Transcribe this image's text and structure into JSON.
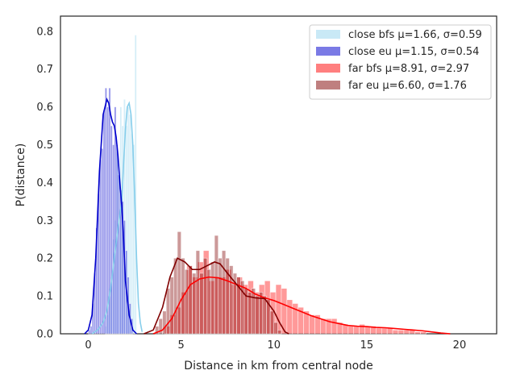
{
  "chart_data": {
    "type": "histogram",
    "xlabel": "Distance in km from central node",
    "ylabel": "P(distance)",
    "xlim": [
      -1.5,
      22
    ],
    "ylim": [
      0,
      0.84
    ],
    "xticks": [
      0,
      5,
      10,
      15,
      20
    ],
    "yticks": [
      0.0,
      0.1,
      0.2,
      0.3,
      0.4,
      0.5,
      0.6,
      0.7,
      0.8
    ],
    "grid": false,
    "legend_position": "top-right",
    "series": [
      {
        "name": "close bfs μ=1.66, σ=0.59",
        "color": "#87ceeb",
        "bar_alpha": 0.35,
        "bin_width": 0.1,
        "bins": [
          [
            0.9,
            0.02
          ],
          [
            1.0,
            0.05
          ],
          [
            1.1,
            0.12
          ],
          [
            1.2,
            0.15
          ],
          [
            1.3,
            0.25
          ],
          [
            1.4,
            0.3
          ],
          [
            1.5,
            0.5
          ],
          [
            1.6,
            0.45
          ],
          [
            1.7,
            0.6
          ],
          [
            1.8,
            0.55
          ],
          [
            1.9,
            0.62
          ],
          [
            2.0,
            0.55
          ],
          [
            2.1,
            0.6
          ],
          [
            2.2,
            0.58
          ],
          [
            2.3,
            0.53
          ],
          [
            2.4,
            0.5
          ],
          [
            2.5,
            0.79
          ]
        ],
        "kde": [
          [
            0.2,
            0.0
          ],
          [
            0.5,
            0.01
          ],
          [
            0.8,
            0.03
          ],
          [
            1.0,
            0.06
          ],
          [
            1.2,
            0.12
          ],
          [
            1.4,
            0.2
          ],
          [
            1.6,
            0.28
          ],
          [
            1.8,
            0.35
          ],
          [
            1.9,
            0.45
          ],
          [
            2.0,
            0.54
          ],
          [
            2.1,
            0.6
          ],
          [
            2.2,
            0.61
          ],
          [
            2.3,
            0.58
          ],
          [
            2.4,
            0.5
          ],
          [
            2.5,
            0.36
          ],
          [
            2.6,
            0.2
          ],
          [
            2.7,
            0.08
          ],
          [
            2.8,
            0.03
          ],
          [
            2.9,
            0.005
          ]
        ]
      },
      {
        "name": "close eu μ=1.15, σ=0.54",
        "color": "#0000cd",
        "bar_alpha": 0.42,
        "bin_width": 0.1,
        "bins": [
          [
            0.0,
            0.01
          ],
          [
            0.1,
            0.02
          ],
          [
            0.2,
            0.08
          ],
          [
            0.3,
            0.16
          ],
          [
            0.4,
            0.28
          ],
          [
            0.5,
            0.37
          ],
          [
            0.6,
            0.46
          ],
          [
            0.7,
            0.49
          ],
          [
            0.8,
            0.59
          ],
          [
            0.9,
            0.65
          ],
          [
            1.0,
            0.6
          ],
          [
            1.1,
            0.65
          ],
          [
            1.2,
            0.55
          ],
          [
            1.3,
            0.5
          ],
          [
            1.4,
            0.6
          ],
          [
            1.5,
            0.5
          ],
          [
            1.6,
            0.42
          ],
          [
            1.7,
            0.38
          ],
          [
            1.8,
            0.35
          ],
          [
            1.9,
            0.3
          ],
          [
            2.0,
            0.22
          ],
          [
            2.1,
            0.15
          ],
          [
            2.2,
            0.08
          ],
          [
            2.3,
            0.04
          ]
        ],
        "kde": [
          [
            -0.2,
            0.0
          ],
          [
            0.0,
            0.01
          ],
          [
            0.2,
            0.05
          ],
          [
            0.4,
            0.2
          ],
          [
            0.6,
            0.43
          ],
          [
            0.8,
            0.58
          ],
          [
            1.0,
            0.62
          ],
          [
            1.1,
            0.61
          ],
          [
            1.2,
            0.58
          ],
          [
            1.3,
            0.56
          ],
          [
            1.4,
            0.55
          ],
          [
            1.5,
            0.52
          ],
          [
            1.6,
            0.47
          ],
          [
            1.7,
            0.4
          ],
          [
            1.8,
            0.34
          ],
          [
            1.9,
            0.25
          ],
          [
            2.0,
            0.14
          ],
          [
            2.2,
            0.05
          ],
          [
            2.4,
            0.01
          ],
          [
            2.6,
            0.0
          ]
        ]
      },
      {
        "name": "far bfs μ=8.91, σ=2.97",
        "color": "#ff0000",
        "bar_alpha": 0.4,
        "bin_width": 0.3,
        "bins": [
          [
            4.1,
            0.02
          ],
          [
            4.4,
            0.05
          ],
          [
            4.7,
            0.07
          ],
          [
            5.0,
            0.11
          ],
          [
            5.3,
            0.18
          ],
          [
            5.6,
            0.15
          ],
          [
            5.9,
            0.19
          ],
          [
            6.2,
            0.22
          ],
          [
            6.5,
            0.14
          ],
          [
            6.8,
            0.15
          ],
          [
            7.1,
            0.15
          ],
          [
            7.4,
            0.17
          ],
          [
            7.7,
            0.13
          ],
          [
            8.0,
            0.15
          ],
          [
            8.3,
            0.13
          ],
          [
            8.6,
            0.14
          ],
          [
            8.9,
            0.11
          ],
          [
            9.2,
            0.13
          ],
          [
            9.5,
            0.14
          ],
          [
            9.8,
            0.11
          ],
          [
            10.1,
            0.13
          ],
          [
            10.4,
            0.12
          ],
          [
            10.7,
            0.09
          ],
          [
            11.0,
            0.08
          ],
          [
            11.3,
            0.07
          ],
          [
            11.6,
            0.06
          ],
          [
            11.9,
            0.05
          ],
          [
            12.2,
            0.05
          ],
          [
            12.5,
            0.04
          ],
          [
            12.8,
            0.04
          ],
          [
            13.1,
            0.04
          ],
          [
            13.4,
            0.03
          ],
          [
            13.7,
            0.025
          ],
          [
            14.0,
            0.02
          ],
          [
            14.3,
            0.02
          ],
          [
            14.6,
            0.025
          ],
          [
            14.9,
            0.02
          ],
          [
            15.2,
            0.02
          ],
          [
            15.5,
            0.015
          ],
          [
            15.8,
            0.015
          ],
          [
            16.1,
            0.015
          ],
          [
            16.4,
            0.01
          ],
          [
            16.7,
            0.01
          ],
          [
            17.0,
            0.01
          ],
          [
            17.3,
            0.01
          ],
          [
            17.6,
            0.005
          ],
          [
            17.9,
            0.005
          ]
        ],
        "kde": [
          [
            3.5,
            0.0
          ],
          [
            4.0,
            0.01
          ],
          [
            4.5,
            0.04
          ],
          [
            5.0,
            0.09
          ],
          [
            5.5,
            0.13
          ],
          [
            6.0,
            0.145
          ],
          [
            6.5,
            0.15
          ],
          [
            7.0,
            0.148
          ],
          [
            7.5,
            0.14
          ],
          [
            8.0,
            0.13
          ],
          [
            8.5,
            0.12
          ],
          [
            9.0,
            0.105
          ],
          [
            9.5,
            0.095
          ],
          [
            10.0,
            0.088
          ],
          [
            10.5,
            0.078
          ],
          [
            11.0,
            0.068
          ],
          [
            11.5,
            0.058
          ],
          [
            12.0,
            0.048
          ],
          [
            12.5,
            0.04
          ],
          [
            13.0,
            0.032
          ],
          [
            13.5,
            0.027
          ],
          [
            14.0,
            0.022
          ],
          [
            14.5,
            0.02
          ],
          [
            15.0,
            0.019
          ],
          [
            15.5,
            0.017
          ],
          [
            16.0,
            0.016
          ],
          [
            16.5,
            0.014
          ],
          [
            17.0,
            0.012
          ],
          [
            17.5,
            0.01
          ],
          [
            18.0,
            0.008
          ],
          [
            18.5,
            0.005
          ],
          [
            19.0,
            0.002
          ],
          [
            19.5,
            0.0
          ]
        ]
      },
      {
        "name": "far eu μ=6.60, σ=1.76",
        "color": "#800000",
        "bar_alpha": 0.4,
        "bin_width": 0.2,
        "bins": [
          [
            3.6,
            0.02
          ],
          [
            3.8,
            0.04
          ],
          [
            4.0,
            0.06
          ],
          [
            4.2,
            0.12
          ],
          [
            4.4,
            0.15
          ],
          [
            4.6,
            0.2
          ],
          [
            4.8,
            0.27
          ],
          [
            5.0,
            0.2
          ],
          [
            5.2,
            0.17
          ],
          [
            5.4,
            0.18
          ],
          [
            5.6,
            0.16
          ],
          [
            5.8,
            0.22
          ],
          [
            6.0,
            0.16
          ],
          [
            6.2,
            0.2
          ],
          [
            6.4,
            0.17
          ],
          [
            6.6,
            0.19
          ],
          [
            6.8,
            0.26
          ],
          [
            7.0,
            0.2
          ],
          [
            7.2,
            0.22
          ],
          [
            7.4,
            0.2
          ],
          [
            7.6,
            0.18
          ],
          [
            7.8,
            0.16
          ],
          [
            8.0,
            0.15
          ],
          [
            8.2,
            0.14
          ],
          [
            8.4,
            0.12
          ],
          [
            8.6,
            0.11
          ],
          [
            8.8,
            0.12
          ],
          [
            9.0,
            0.1
          ],
          [
            9.2,
            0.11
          ],
          [
            9.4,
            0.1
          ],
          [
            9.6,
            0.09
          ],
          [
            9.8,
            0.06
          ],
          [
            10.0,
            0.03
          ],
          [
            10.2,
            0.01
          ]
        ],
        "kde": [
          [
            3.0,
            0.0
          ],
          [
            3.5,
            0.01
          ],
          [
            4.0,
            0.07
          ],
          [
            4.4,
            0.15
          ],
          [
            4.8,
            0.2
          ],
          [
            5.2,
            0.19
          ],
          [
            5.6,
            0.17
          ],
          [
            6.0,
            0.17
          ],
          [
            6.4,
            0.18
          ],
          [
            6.8,
            0.19
          ],
          [
            7.1,
            0.185
          ],
          [
            7.5,
            0.16
          ],
          [
            8.0,
            0.13
          ],
          [
            8.5,
            0.1
          ],
          [
            9.0,
            0.095
          ],
          [
            9.5,
            0.093
          ],
          [
            10.0,
            0.06
          ],
          [
            10.3,
            0.03
          ],
          [
            10.6,
            0.005
          ],
          [
            10.8,
            0.0
          ]
        ]
      }
    ]
  }
}
